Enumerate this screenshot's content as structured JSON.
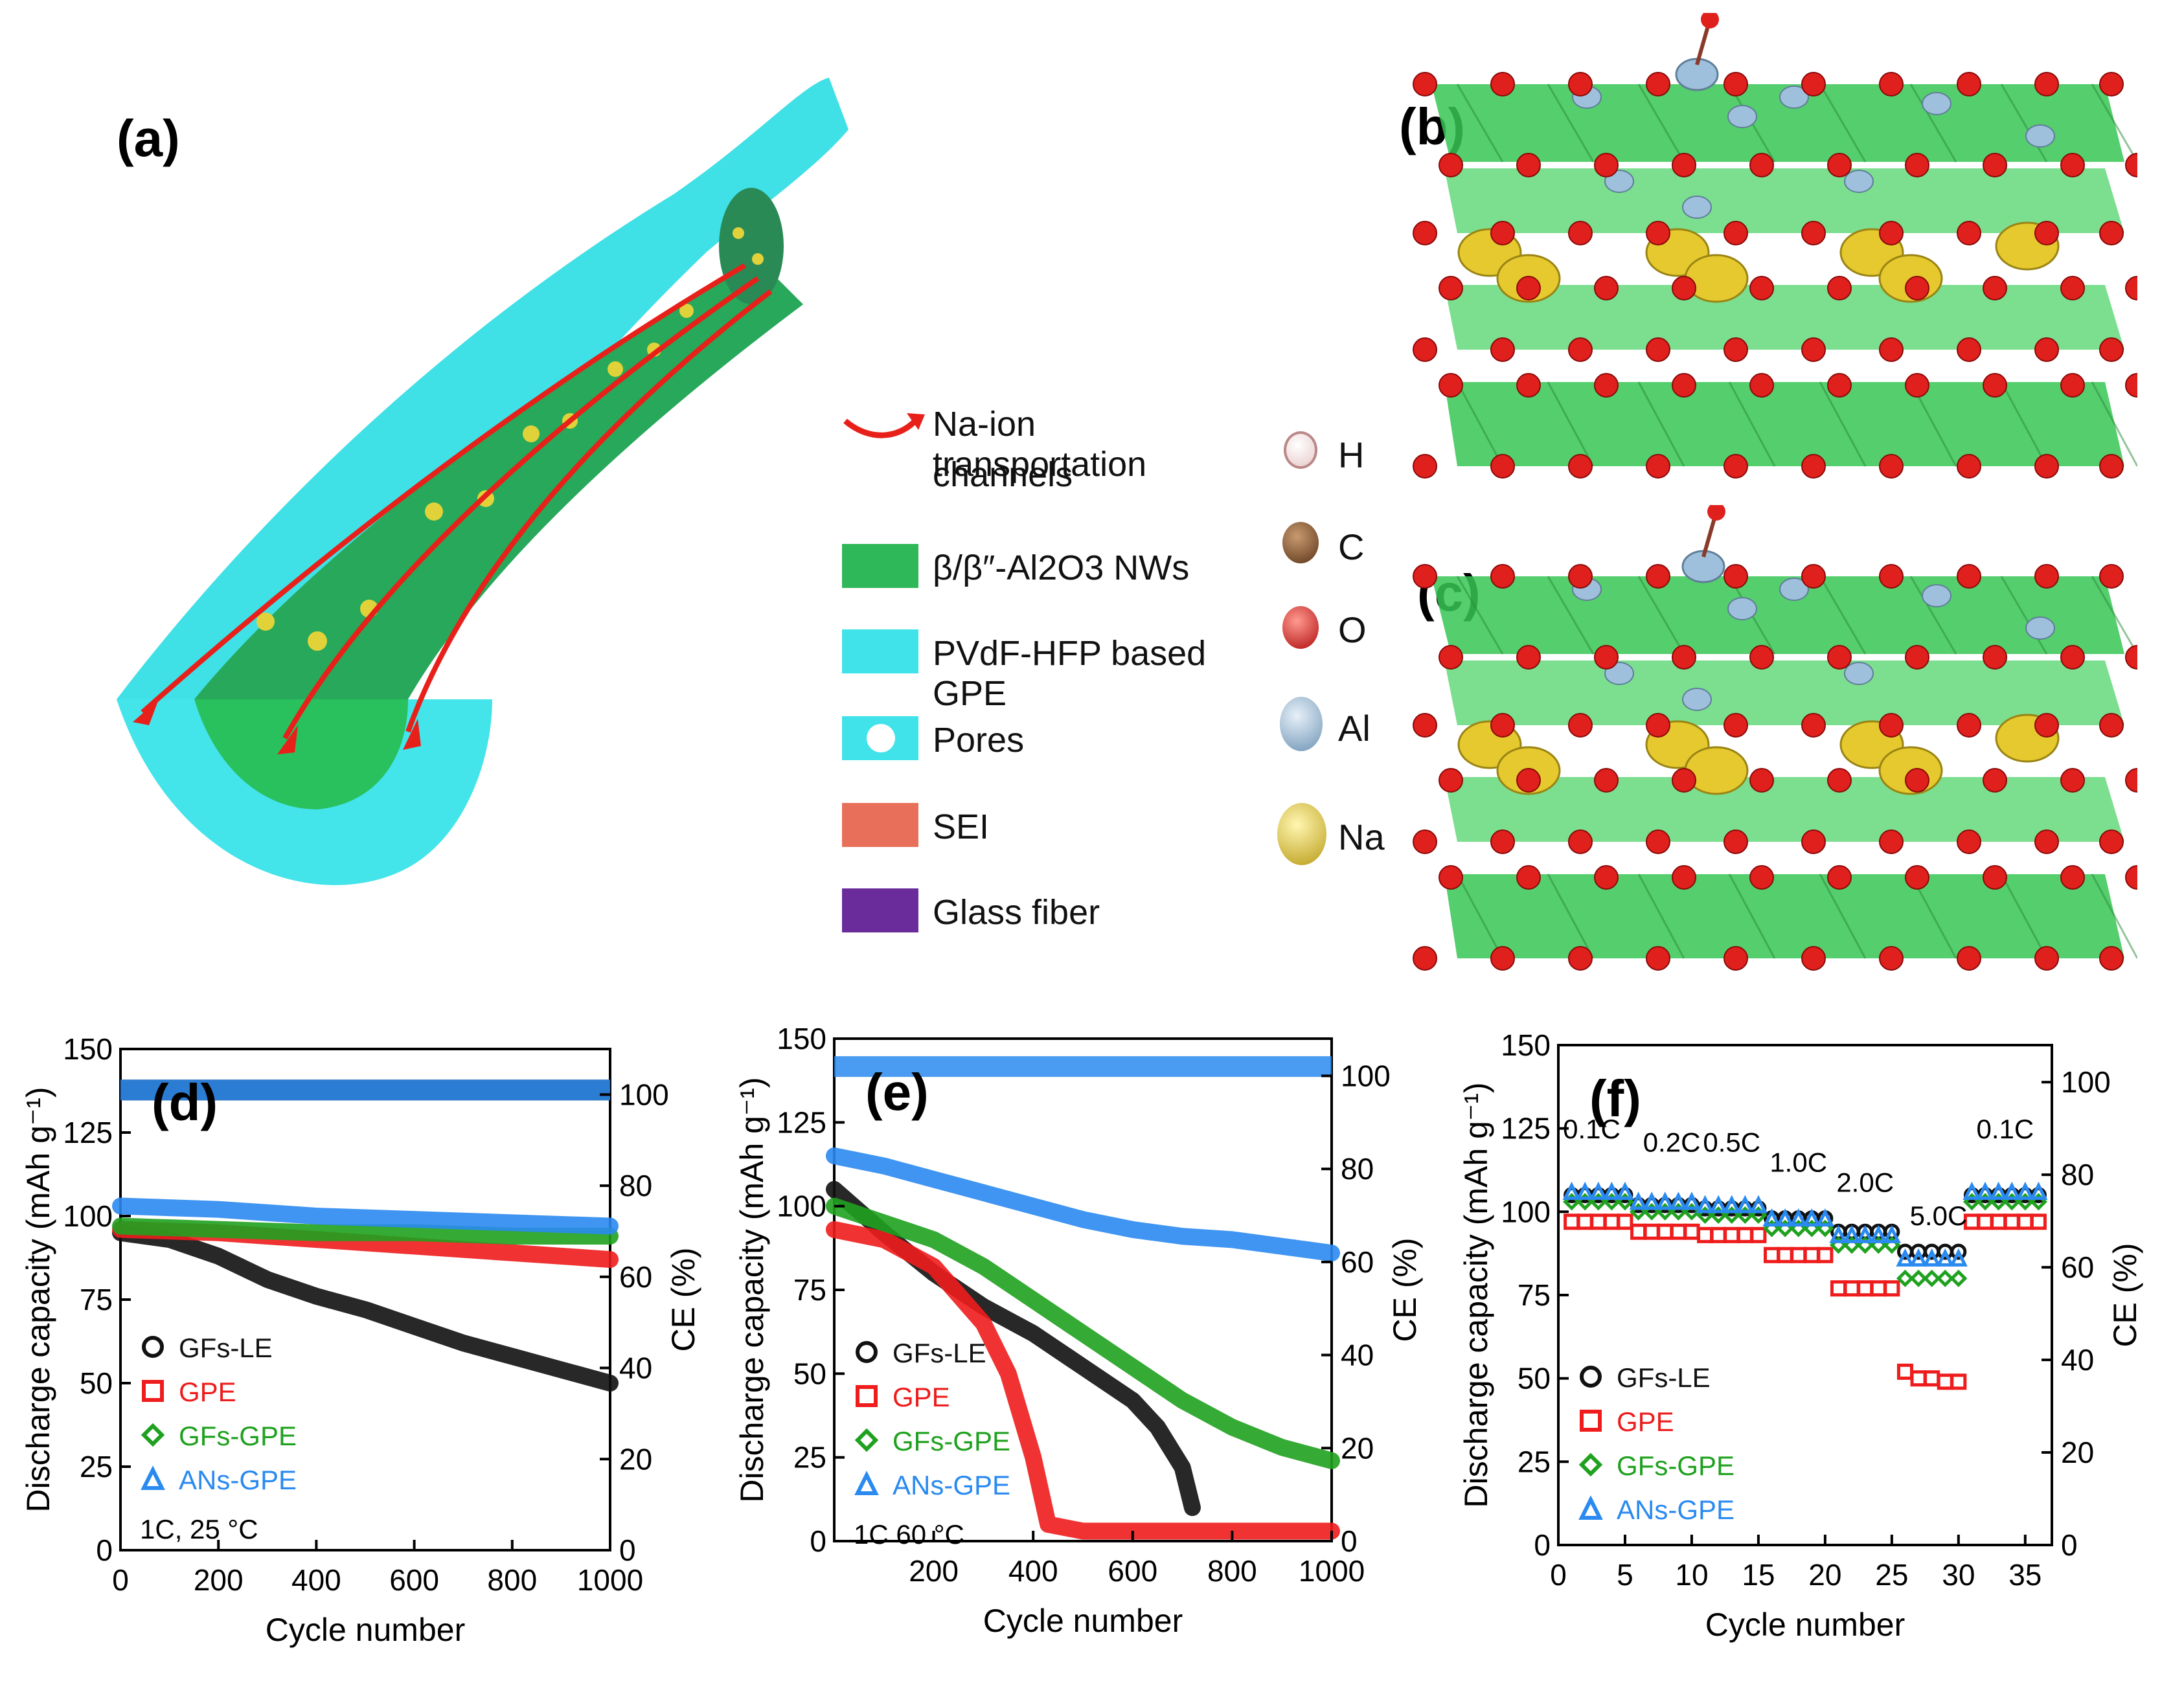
{
  "panels": {
    "a": "(a)",
    "b": "(b)",
    "c": "(c)",
    "d": "(d)",
    "e": "(e)",
    "f": "(f)"
  },
  "schematic_legend": [
    {
      "label": "Na-ion transportation channels",
      "line1": "Na-ion transportation",
      "line2": "channels",
      "color": "#e8201a",
      "kind": "arrow"
    },
    {
      "label": "β/β″-Al2O3 NWs",
      "color": "#2fb85a",
      "kind": "box"
    },
    {
      "label": "PVdF-HFP based GPE",
      "color": "#40e3ea",
      "kind": "box"
    },
    {
      "label": "Pores",
      "color": "#40e3ea",
      "kind": "pore"
    },
    {
      "label": "SEI",
      "color": "#e8705a",
      "kind": "box"
    },
    {
      "label": "Glass fiber",
      "color": "#6a2c9a",
      "kind": "box"
    }
  ],
  "atom_legend": [
    {
      "symbol": "H",
      "color": "#f2d9d9"
    },
    {
      "symbol": "C",
      "color": "#7a4a2a"
    },
    {
      "symbol": "O",
      "color": "#e0201c"
    },
    {
      "symbol": "Al",
      "color": "#9fc0dc"
    },
    {
      "symbol": "Na",
      "color": "#e7cf3a"
    }
  ],
  "colors": {
    "GFs-LE": "#111111",
    "GPE": "#ee1c1c",
    "GFs-GPE": "#1fa11f",
    "ANs-GPE": "#2a8af0"
  },
  "chart_data": [
    {
      "id": "d",
      "type": "line",
      "xlabel": "Cycle number",
      "ylabel": "Discharge capacity (mAh g⁻¹)",
      "y2label": "CE (%)",
      "xlim": [
        0,
        1000
      ],
      "ylim": [
        0,
        150
      ],
      "y2lim": [
        0,
        110
      ],
      "xticks": [
        0,
        200,
        400,
        600,
        800,
        1000
      ],
      "yticks": [
        0,
        25,
        50,
        75,
        100,
        125,
        150
      ],
      "y2ticks": [
        0,
        20,
        40,
        60,
        80,
        100
      ],
      "annotation": "1C, 25 °C",
      "series": [
        {
          "name": "GFs-LE",
          "x": [
            0,
            100,
            200,
            300,
            400,
            500,
            600,
            700,
            800,
            900,
            1000
          ],
          "y": [
            95,
            93,
            88,
            81,
            76,
            72,
            67,
            62,
            58,
            54,
            50
          ]
        },
        {
          "name": "GPE",
          "x": [
            0,
            200,
            400,
            600,
            800,
            1000
          ],
          "y": [
            96,
            95,
            93,
            91,
            89,
            87
          ]
        },
        {
          "name": "GFs-GPE",
          "x": [
            0,
            200,
            400,
            600,
            800,
            1000
          ],
          "y": [
            97,
            96,
            95,
            95,
            94,
            94
          ]
        },
        {
          "name": "ANs-GPE",
          "x": [
            0,
            200,
            400,
            600,
            800,
            1000
          ],
          "y": [
            103,
            102,
            100,
            99,
            98,
            97
          ]
        }
      ],
      "ce_series": [
        {
          "name": "GFs-LE",
          "x": [
            0,
            1000
          ],
          "y": [
            101,
            101
          ]
        },
        {
          "name": "ANs-GPE",
          "x": [
            0,
            1000
          ],
          "y": [
            101,
            101
          ]
        }
      ]
    },
    {
      "id": "e",
      "type": "line",
      "xlabel": "Cycle number",
      "ylabel": "Discharge capacity (mAh g⁻¹)",
      "y2label": "CE (%)",
      "xlim": [
        0,
        1000
      ],
      "ylim": [
        0,
        150
      ],
      "y2lim": [
        0,
        108
      ],
      "xticks": [
        200,
        400,
        600,
        800,
        1000
      ],
      "yticks": [
        0,
        25,
        50,
        75,
        100,
        125,
        150
      ],
      "y2ticks": [
        0,
        20,
        40,
        60,
        80,
        100
      ],
      "annotation": "1C 60 °C",
      "series": [
        {
          "name": "GFs-LE",
          "x": [
            0,
            100,
            200,
            300,
            400,
            500,
            600,
            650,
            700,
            720
          ],
          "y": [
            105,
            92,
            80,
            70,
            62,
            52,
            42,
            34,
            22,
            10
          ]
        },
        {
          "name": "GPE",
          "x": [
            0,
            100,
            200,
            300,
            350,
            400,
            430,
            500,
            1000
          ],
          "y": [
            93,
            90,
            82,
            65,
            50,
            25,
            5,
            3,
            3
          ]
        },
        {
          "name": "GFs-GPE",
          "x": [
            0,
            100,
            200,
            300,
            400,
            500,
            600,
            700,
            800,
            900,
            1000
          ],
          "y": [
            100,
            95,
            90,
            82,
            72,
            62,
            52,
            42,
            34,
            28,
            24
          ]
        },
        {
          "name": "ANs-GPE",
          "x": [
            0,
            100,
            200,
            300,
            400,
            500,
            600,
            700,
            800,
            900,
            1000
          ],
          "y": [
            115,
            112,
            108,
            104,
            100,
            96,
            93,
            91,
            90,
            88,
            86
          ]
        }
      ],
      "ce_series": [
        {
          "name": "ANs-GPE",
          "x": [
            0,
            1000
          ],
          "y": [
            102,
            102
          ]
        }
      ]
    },
    {
      "id": "f",
      "type": "scatter",
      "xlabel": "Cycle number",
      "ylabel": "Discharge capacity (mAh g⁻¹)",
      "y2label": "CE (%)",
      "xlim": [
        0,
        37
      ],
      "ylim": [
        0,
        150
      ],
      "y2lim": [
        0,
        108
      ],
      "xticks": [
        0,
        5,
        10,
        15,
        20,
        25,
        30,
        35
      ],
      "yticks": [
        0,
        25,
        50,
        75,
        100,
        125,
        150
      ],
      "y2ticks": [
        0,
        20,
        40,
        60,
        80,
        100
      ],
      "rate_labels": [
        "0.1C",
        "0.2C",
        "0.5C",
        "1.0C",
        "2.0C",
        "5.0C",
        "0.1C"
      ],
      "series": [
        {
          "name": "GFs-LE",
          "x": [
            1,
            2,
            3,
            4,
            5,
            6,
            7,
            8,
            9,
            10,
            11,
            12,
            13,
            14,
            15,
            16,
            17,
            18,
            19,
            20,
            21,
            22,
            23,
            24,
            25,
            26,
            27,
            28,
            29,
            30,
            31,
            32,
            33,
            34,
            35,
            36
          ],
          "y": [
            105,
            105,
            105,
            105,
            105,
            102,
            102,
            102,
            102,
            102,
            101,
            101,
            101,
            101,
            101,
            98,
            98,
            98,
            98,
            98,
            94,
            94,
            94,
            94,
            94,
            88,
            88,
            88,
            88,
            88,
            105,
            105,
            105,
            105,
            105,
            105
          ]
        },
        {
          "name": "GPE",
          "x": [
            1,
            2,
            3,
            4,
            5,
            6,
            7,
            8,
            9,
            10,
            11,
            12,
            13,
            14,
            15,
            16,
            17,
            18,
            19,
            20,
            21,
            22,
            23,
            24,
            25,
            26,
            27,
            28,
            29,
            30,
            31,
            32,
            33,
            34,
            35,
            36
          ],
          "y": [
            97,
            97,
            97,
            97,
            97,
            94,
            94,
            94,
            94,
            94,
            93,
            93,
            93,
            93,
            93,
            87,
            87,
            87,
            87,
            87,
            77,
            77,
            77,
            77,
            77,
            52,
            50,
            50,
            49,
            49,
            97,
            97,
            97,
            97,
            97,
            97
          ]
        },
        {
          "name": "GFs-GPE",
          "x": [
            1,
            2,
            3,
            4,
            5,
            6,
            7,
            8,
            9,
            10,
            11,
            12,
            13,
            14,
            15,
            16,
            17,
            18,
            19,
            20,
            21,
            22,
            23,
            24,
            25,
            26,
            27,
            28,
            29,
            30,
            31,
            32,
            33,
            34,
            35,
            36
          ],
          "y": [
            103,
            103,
            103,
            103,
            103,
            100,
            100,
            100,
            100,
            100,
            99,
            99,
            99,
            99,
            99,
            95,
            95,
            95,
            95,
            95,
            90,
            90,
            90,
            90,
            90,
            80,
            80,
            80,
            80,
            80,
            103,
            103,
            103,
            103,
            103,
            103
          ]
        },
        {
          "name": "ANs-GPE",
          "x": [
            1,
            2,
            3,
            4,
            5,
            6,
            7,
            8,
            9,
            10,
            11,
            12,
            13,
            14,
            15,
            16,
            17,
            18,
            19,
            20,
            21,
            22,
            23,
            24,
            25,
            26,
            27,
            28,
            29,
            30,
            31,
            32,
            33,
            34,
            35,
            36
          ],
          "y": [
            106,
            106,
            106,
            106,
            106,
            103,
            103,
            103,
            103,
            103,
            102,
            102,
            102,
            102,
            102,
            98,
            98,
            98,
            98,
            98,
            93,
            93,
            93,
            93,
            93,
            86,
            86,
            86,
            86,
            86,
            106,
            106,
            106,
            106,
            106,
            106
          ]
        }
      ]
    }
  ]
}
